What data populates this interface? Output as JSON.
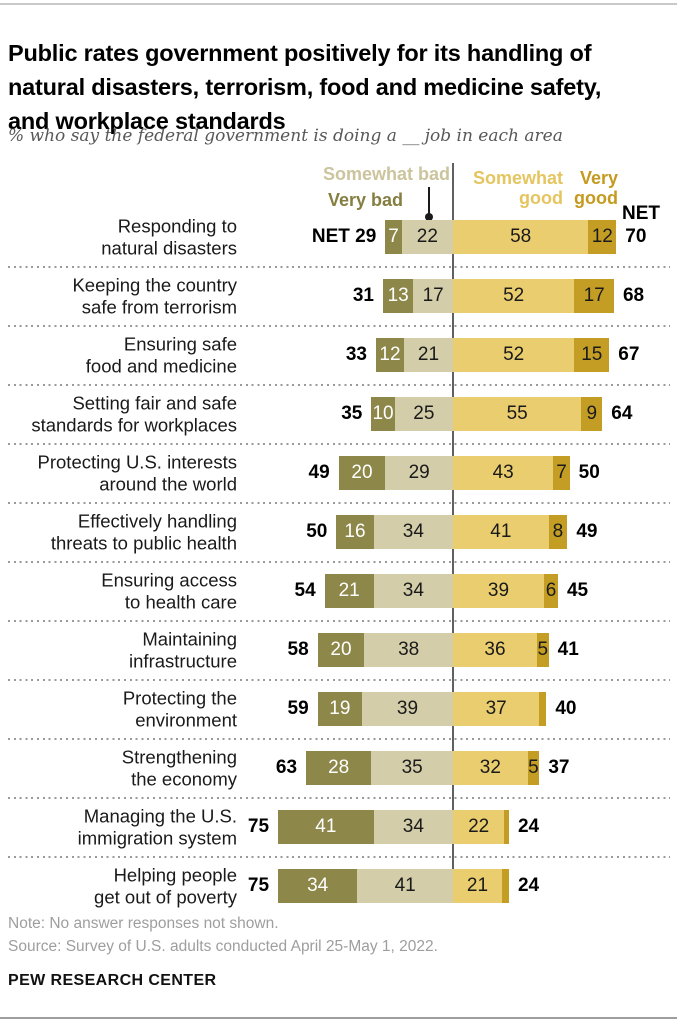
{
  "header": {
    "title": "Public rates government positively for its handling of\nnatural disasters, terrorism, food and medicine safety,\nand workplace standards",
    "subtitle": "% who say the federal government is doing a __ job in each area"
  },
  "legend": {
    "somewhat_bad": "Somewhat bad",
    "very_bad": "Very bad",
    "somewhat_good": "Somewhat good",
    "very_good": "Very good",
    "net": "NET"
  },
  "colors": {
    "very_bad_bar": "#8D874A",
    "somewhat_bad_bar": "#D3CDA9",
    "somewhat_good_bar": "#E9CD6E",
    "very_good_bar": "#C49E24",
    "very_bad_text": "#857E41",
    "somewhat_bad_text": "#CBC49D",
    "somewhat_good_text": "#E5C55F",
    "very_good_text": "#C49B1E",
    "axis": "#606060",
    "net_text": "#000000"
  },
  "chart_data": {
    "type": "bar",
    "orientation": "horizontal",
    "stacked": true,
    "diverging": true,
    "unit": "percent",
    "legend_position": "top",
    "series_order": [
      "very_bad",
      "somewhat_bad",
      "somewhat_good",
      "very_good"
    ],
    "rows": [
      {
        "category": "Responding to\nnatural disasters",
        "net_bad": "NET 29",
        "net_good": "70",
        "very_bad": {
          "value": 7,
          "label": "7"
        },
        "somewhat_bad": {
          "value": 22,
          "label": "22"
        },
        "somewhat_good": {
          "value": 58,
          "label": "58"
        },
        "very_good": {
          "value": 12,
          "label": "12"
        }
      },
      {
        "category": "Keeping the country\nsafe from terrorism",
        "net_bad": "31",
        "net_good": "68",
        "very_bad": {
          "value": 13,
          "label": "13"
        },
        "somewhat_bad": {
          "value": 17,
          "label": "17"
        },
        "somewhat_good": {
          "value": 52,
          "label": "52"
        },
        "very_good": {
          "value": 17,
          "label": "17"
        }
      },
      {
        "category": "Ensuring safe\nfood and medicine",
        "net_bad": "33",
        "net_good": "67",
        "very_bad": {
          "value": 12,
          "label": "12"
        },
        "somewhat_bad": {
          "value": 21,
          "label": "21"
        },
        "somewhat_good": {
          "value": 52,
          "label": "52"
        },
        "very_good": {
          "value": 15,
          "label": "15"
        }
      },
      {
        "category": "Setting fair and safe\nstandards for workplaces",
        "net_bad": "35",
        "net_good": "64",
        "very_bad": {
          "value": 10,
          "label": "10"
        },
        "somewhat_bad": {
          "value": 25,
          "label": "25"
        },
        "somewhat_good": {
          "value": 55,
          "label": "55"
        },
        "very_good": {
          "value": 9,
          "label": "9"
        }
      },
      {
        "category": "Protecting U.S. interests\naround the world",
        "net_bad": "49",
        "net_good": "50",
        "very_bad": {
          "value": 20,
          "label": "20"
        },
        "somewhat_bad": {
          "value": 29,
          "label": "29"
        },
        "somewhat_good": {
          "value": 43,
          "label": "43"
        },
        "very_good": {
          "value": 7,
          "label": "7"
        }
      },
      {
        "category": "Effectively handling\nthreats to public health",
        "net_bad": "50",
        "net_good": "49",
        "very_bad": {
          "value": 16,
          "label": "16"
        },
        "somewhat_bad": {
          "value": 34,
          "label": "34"
        },
        "somewhat_good": {
          "value": 41,
          "label": "41"
        },
        "very_good": {
          "value": 8,
          "label": "8"
        }
      },
      {
        "category": "Ensuring access\nto health care",
        "net_bad": "54",
        "net_good": "45",
        "very_bad": {
          "value": 21,
          "label": "21"
        },
        "somewhat_bad": {
          "value": 34,
          "label": "34"
        },
        "somewhat_good": {
          "value": 39,
          "label": "39"
        },
        "very_good": {
          "value": 6,
          "label": "6"
        }
      },
      {
        "category": "Maintaining\ninfrastructure",
        "net_bad": "58",
        "net_good": "41",
        "very_bad": {
          "value": 20,
          "label": "20"
        },
        "somewhat_bad": {
          "value": 38,
          "label": "38"
        },
        "somewhat_good": {
          "value": 36,
          "label": "36"
        },
        "very_good": {
          "value": 5,
          "label": "5"
        }
      },
      {
        "category": "Protecting the\nenvironment",
        "net_bad": "59",
        "net_good": "40",
        "very_bad": {
          "value": 19,
          "label": "19"
        },
        "somewhat_bad": {
          "value": 39,
          "label": "39"
        },
        "somewhat_good": {
          "value": 37,
          "label": "37"
        },
        "very_good": {
          "value": 3,
          "label": ""
        }
      },
      {
        "category": "Strengthening\nthe economy",
        "net_bad": "63",
        "net_good": "37",
        "very_bad": {
          "value": 28,
          "label": "28"
        },
        "somewhat_bad": {
          "value": 35,
          "label": "35"
        },
        "somewhat_good": {
          "value": 32,
          "label": "32"
        },
        "very_good": {
          "value": 5,
          "label": "5"
        }
      },
      {
        "category": "Managing the U.S.\nimmigration system",
        "net_bad": "75",
        "net_good": "24",
        "very_bad": {
          "value": 41,
          "label": "41"
        },
        "somewhat_bad": {
          "value": 34,
          "label": "34"
        },
        "somewhat_good": {
          "value": 22,
          "label": "22"
        },
        "very_good": {
          "value": 2,
          "label": ""
        }
      },
      {
        "category": "Helping people\nget out of poverty",
        "net_bad": "75",
        "net_good": "24",
        "very_bad": {
          "value": 34,
          "label": "34"
        },
        "somewhat_bad": {
          "value": 41,
          "label": "41"
        },
        "somewhat_good": {
          "value": 21,
          "label": "21"
        },
        "very_good": {
          "value": 3,
          "label": ""
        }
      }
    ]
  },
  "footer": {
    "note": "Note: No answer responses not shown.",
    "source": "Source: Survey of U.S. adults conducted April 25-May 1, 2022.",
    "brand": "PEW RESEARCH CENTER"
  }
}
